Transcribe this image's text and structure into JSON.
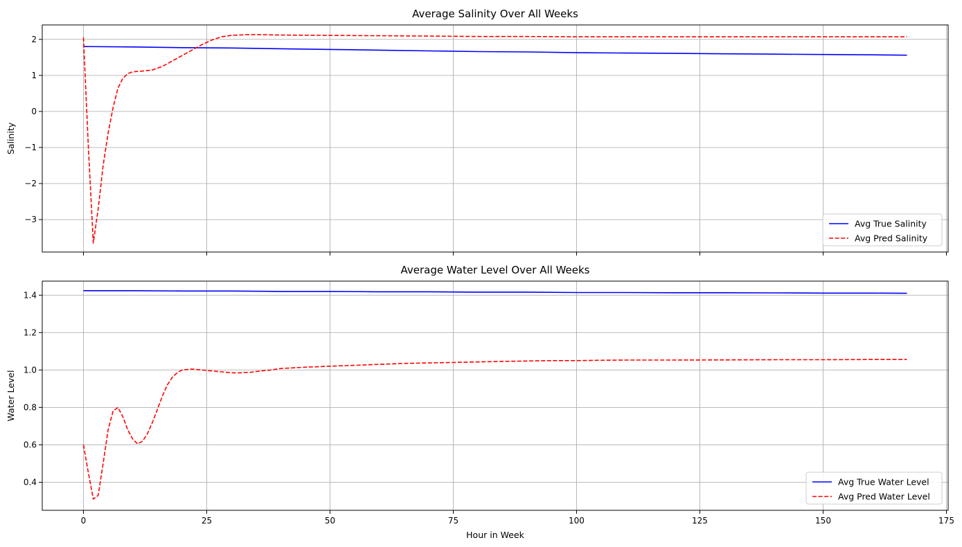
{
  "chart_data": [
    {
      "type": "line",
      "title": "Average Salinity Over All Weeks",
      "xlabel": "",
      "ylabel": "Salinity",
      "xlim": [
        -8.35,
        175.35
      ],
      "ylim": [
        -3.9,
        2.4
      ],
      "xticks": [
        0,
        25,
        50,
        75,
        100,
        125,
        150,
        175
      ],
      "xtick_labels": [],
      "yticks": [
        -3,
        -2,
        -1,
        0,
        1,
        2
      ],
      "ytick_labels": [
        "−3",
        "−2",
        "−1",
        "0",
        "1",
        "2"
      ],
      "grid": true,
      "legend": "lower-right",
      "series": [
        {
          "name": "Avg True Salinity",
          "color": "#0000ff",
          "style": "solid",
          "x": [
            0,
            10,
            20,
            30,
            40,
            50,
            60,
            70,
            80,
            90,
            100,
            110,
            120,
            130,
            140,
            150,
            160,
            167
          ],
          "y": [
            1.8,
            1.79,
            1.77,
            1.76,
            1.74,
            1.72,
            1.7,
            1.68,
            1.66,
            1.65,
            1.63,
            1.62,
            1.61,
            1.6,
            1.59,
            1.58,
            1.57,
            1.56
          ]
        },
        {
          "name": "Avg Pred Salinity",
          "color": "#ff0000",
          "style": "dashed",
          "x": [
            0,
            1,
            2,
            3,
            4,
            5,
            6,
            7,
            8,
            9,
            10,
            12,
            14,
            16,
            18,
            20,
            22,
            24,
            26,
            28,
            30,
            33,
            36,
            40,
            50,
            60,
            70,
            80,
            90,
            100,
            110,
            120,
            130,
            140,
            150,
            160,
            167
          ],
          "y": [
            2.05,
            -1.0,
            -3.65,
            -2.7,
            -1.5,
            -0.6,
            0.1,
            0.65,
            0.92,
            1.05,
            1.1,
            1.12,
            1.15,
            1.25,
            1.4,
            1.55,
            1.7,
            1.85,
            1.98,
            2.07,
            2.11,
            2.13,
            2.13,
            2.12,
            2.11,
            2.1,
            2.09,
            2.08,
            2.08,
            2.07,
            2.07,
            2.07,
            2.07,
            2.07,
            2.07,
            2.07,
            2.07
          ]
        }
      ]
    },
    {
      "type": "line",
      "title": "Average Water Level Over All Weeks",
      "xlabel": "Hour in Week",
      "ylabel": "Water Level",
      "xlim": [
        -8.35,
        175.35
      ],
      "ylim": [
        0.25,
        1.475
      ],
      "xticks": [
        0,
        25,
        50,
        75,
        100,
        125,
        150,
        175
      ],
      "xtick_labels": [
        "0",
        "25",
        "50",
        "75",
        "100",
        "125",
        "150",
        "175"
      ],
      "yticks": [
        0.4,
        0.6,
        0.8,
        1.0,
        1.2,
        1.4
      ],
      "ytick_labels": [
        "0.4",
        "0.6",
        "0.8",
        "1.0",
        "1.2",
        "1.4"
      ],
      "grid": true,
      "legend": "lower-right",
      "series": [
        {
          "name": "Avg True Water Level",
          "color": "#0000ff",
          "style": "solid",
          "x": [
            0,
            10,
            20,
            30,
            40,
            50,
            60,
            70,
            80,
            90,
            100,
            110,
            120,
            130,
            140,
            150,
            160,
            167
          ],
          "y": [
            1.424,
            1.424,
            1.422,
            1.422,
            1.42,
            1.42,
            1.418,
            1.418,
            1.416,
            1.416,
            1.414,
            1.414,
            1.413,
            1.413,
            1.412,
            1.411,
            1.411,
            1.41
          ]
        },
        {
          "name": "Avg Pred Water Level",
          "color": "#ff0000",
          "style": "dashed",
          "x": [
            0,
            1,
            2,
            3,
            4,
            5,
            6,
            7,
            8,
            9,
            10,
            11,
            12,
            13,
            14,
            15,
            16,
            17,
            18,
            19,
            20,
            22,
            24,
            26,
            28,
            30,
            32,
            34,
            36,
            38,
            40,
            45,
            50,
            55,
            60,
            65,
            70,
            75,
            80,
            85,
            90,
            95,
            100,
            105,
            110,
            120,
            130,
            140,
            150,
            160,
            167
          ],
          "y": [
            0.6,
            0.45,
            0.31,
            0.33,
            0.5,
            0.68,
            0.78,
            0.8,
            0.75,
            0.68,
            0.63,
            0.605,
            0.62,
            0.66,
            0.72,
            0.79,
            0.86,
            0.92,
            0.96,
            0.985,
            1.0,
            1.005,
            1.0,
            0.995,
            0.99,
            0.985,
            0.985,
            0.988,
            0.995,
            1.0,
            1.008,
            1.015,
            1.02,
            1.025,
            1.03,
            1.035,
            1.038,
            1.04,
            1.043,
            1.046,
            1.048,
            1.05,
            1.05,
            1.052,
            1.053,
            1.053,
            1.054,
            1.055,
            1.055,
            1.056,
            1.056
          ]
        }
      ]
    }
  ]
}
